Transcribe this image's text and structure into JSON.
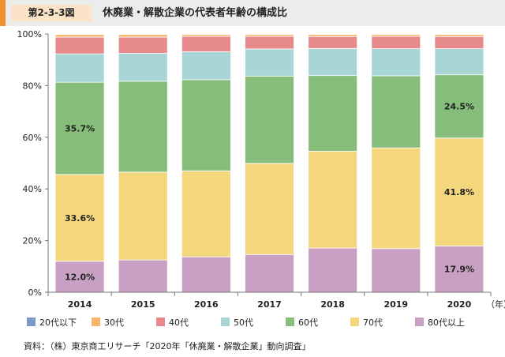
{
  "header": {
    "figure_number": "第2-3-3図",
    "title": "休廃業・解散企業の代表者年齢の構成比"
  },
  "source": "資料：（株）東京商工リサーチ「2020年「休廃業・解散企業」動向調査」",
  "chart_data": {
    "type": "bar",
    "stacked": true,
    "title": "",
    "xlabel": "（年）",
    "ylabel": "",
    "categories": [
      "2014",
      "2015",
      "2016",
      "2017",
      "2018",
      "2019",
      "2020"
    ],
    "ylim": [
      0,
      100
    ],
    "yticks": [
      0,
      20,
      40,
      60,
      80,
      100
    ],
    "ytick_labels": [
      "0%",
      "20%",
      "40%",
      "60%",
      "80%",
      "100%"
    ],
    "legend_position": "bottom",
    "series": [
      {
        "name": "80代以上",
        "color": "#c8a0c3",
        "values": [
          12.0,
          12.5,
          13.7,
          14.6,
          17.1,
          16.9,
          17.9
        ]
      },
      {
        "name": "70代",
        "color": "#f4d77c",
        "values": [
          33.6,
          34.0,
          33.3,
          35.3,
          37.5,
          39.0,
          41.8
        ]
      },
      {
        "name": "60代",
        "color": "#86bd7a",
        "values": [
          35.7,
          35.2,
          35.3,
          33.8,
          29.3,
          27.9,
          24.5
        ]
      },
      {
        "name": "50代",
        "color": "#a8d5d5",
        "values": [
          11.0,
          10.8,
          10.8,
          10.5,
          10.5,
          10.5,
          10.1
        ]
      },
      {
        "name": "40代",
        "color": "#e78a8b",
        "values": [
          6.5,
          6.3,
          6.0,
          4.9,
          4.6,
          4.8,
          4.7
        ]
      },
      {
        "name": "30代",
        "color": "#f8b46a",
        "values": [
          1.0,
          1.0,
          0.7,
          0.7,
          0.8,
          0.7,
          0.8
        ]
      },
      {
        "name": "20代以下",
        "color": "#7a99c4",
        "values": [
          0.2,
          0.2,
          0.2,
          0.2,
          0.2,
          0.2,
          0.2
        ]
      }
    ],
    "data_labels": [
      {
        "series": "80代以上",
        "category": "2014",
        "text": "12.0%"
      },
      {
        "series": "70代",
        "category": "2014",
        "text": "33.6%"
      },
      {
        "series": "60代",
        "category": "2014",
        "text": "35.7%"
      },
      {
        "series": "80代以上",
        "category": "2020",
        "text": "17.9%"
      },
      {
        "series": "70代",
        "category": "2020",
        "text": "41.8%"
      },
      {
        "series": "60代",
        "category": "2020",
        "text": "24.5%"
      }
    ],
    "legend_order": [
      "20代以下",
      "30代",
      "40代",
      "50代",
      "60代",
      "70代",
      "80代以上"
    ]
  }
}
